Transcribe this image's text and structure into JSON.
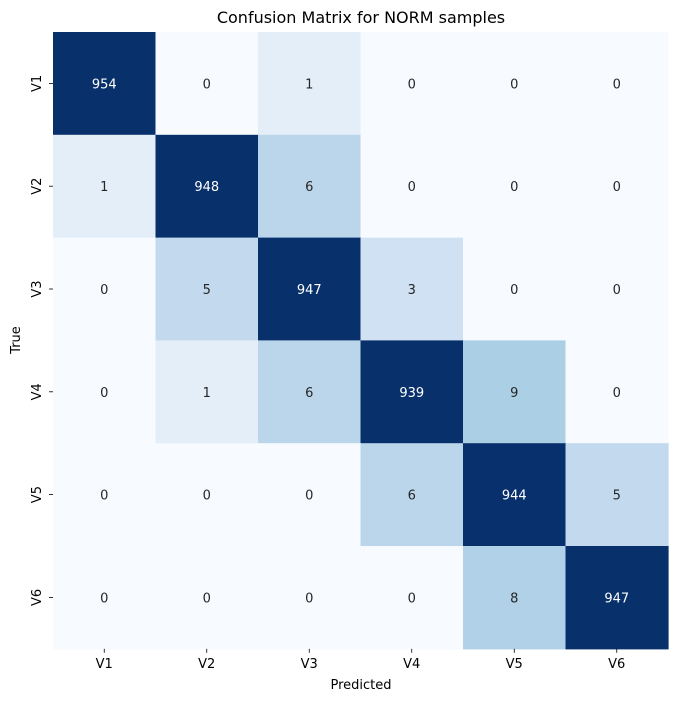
{
  "chart_data": {
    "type": "heatmap",
    "title": "Confusion Matrix for NORM samples",
    "xlabel": "Predicted",
    "ylabel": "True",
    "x_categories": [
      "V1",
      "V2",
      "V3",
      "V4",
      "V5",
      "V6"
    ],
    "y_categories": [
      "V1",
      "V2",
      "V3",
      "V4",
      "V5",
      "V6"
    ],
    "values": [
      [
        954,
        0,
        1,
        0,
        0,
        0
      ],
      [
        1,
        948,
        6,
        0,
        0,
        0
      ],
      [
        0,
        5,
        947,
        3,
        0,
        0
      ],
      [
        0,
        1,
        6,
        939,
        9,
        0
      ],
      [
        0,
        0,
        0,
        6,
        944,
        5
      ],
      [
        0,
        0,
        0,
        0,
        8,
        947
      ]
    ],
    "colormap": "Blues",
    "colorbar": false,
    "grid": false
  }
}
